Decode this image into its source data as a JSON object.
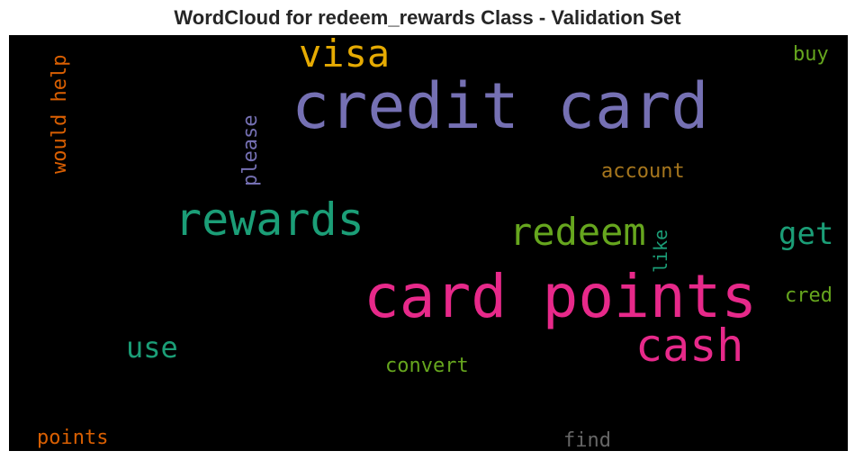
{
  "title": "WordCloud for redeem_rewards Class - Validation Set",
  "words": [
    {
      "text": "credit card",
      "color": "#7570b3"
    },
    {
      "text": "card points",
      "color": "#e7298a"
    },
    {
      "text": "rewards",
      "color": "#1b9e77"
    },
    {
      "text": "cash",
      "color": "#e7298a"
    },
    {
      "text": "redeem",
      "color": "#66a61e"
    },
    {
      "text": "visa",
      "color": "#e6ab02"
    },
    {
      "text": "get",
      "color": "#1b9e77"
    },
    {
      "text": "use",
      "color": "#1b9e77"
    },
    {
      "text": "would help",
      "color": "#d95f02"
    },
    {
      "text": "please",
      "color": "#7570b3"
    },
    {
      "text": "account",
      "color": "#a6761d"
    },
    {
      "text": "like",
      "color": "#1b9e77"
    },
    {
      "text": "cred",
      "color": "#66a61e"
    },
    {
      "text": "buy",
      "color": "#66a61e"
    },
    {
      "text": "convert",
      "color": "#66a61e"
    },
    {
      "text": "points",
      "color": "#d95f02"
    },
    {
      "text": "find",
      "color": "#666666"
    }
  ]
}
